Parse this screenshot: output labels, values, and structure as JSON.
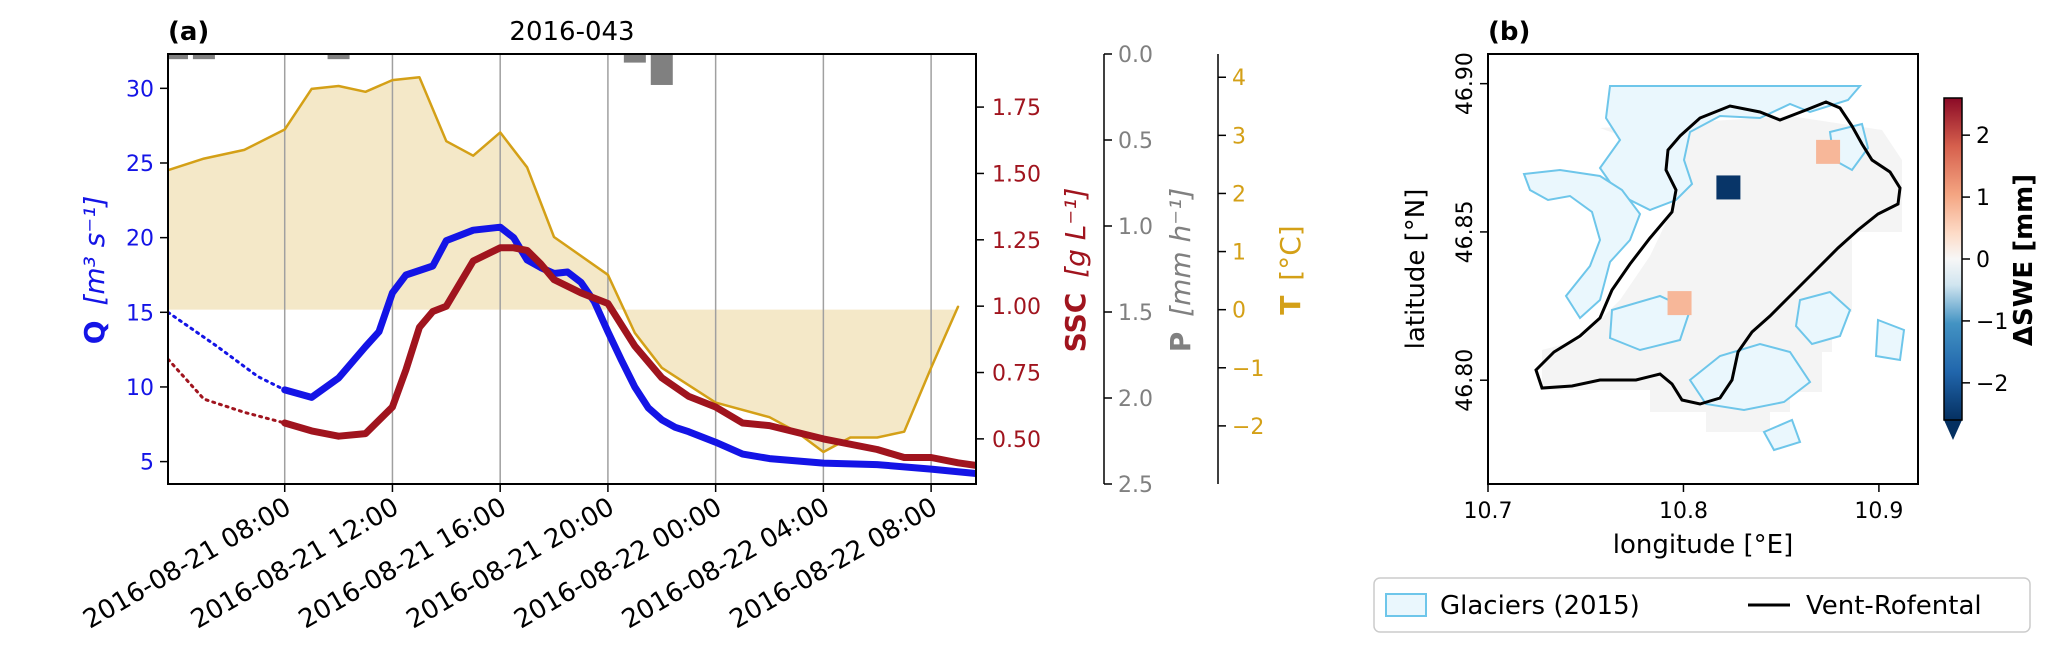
{
  "panel_a": {
    "tag": "(a)",
    "title": "2016-043",
    "x_ticks": [
      "2016-08-21 08:00",
      "2016-08-21 12:00",
      "2016-08-21 16:00",
      "2016-08-21 20:00",
      "2016-08-22 00:00",
      "2016-08-22 04:00",
      "2016-08-22 08:00"
    ],
    "q_axis": {
      "label_bold": "Q",
      "label_units": "[m³ s⁻¹]",
      "ticks": [
        "5",
        "10",
        "15",
        "20",
        "25",
        "30"
      ],
      "color": "#1414e6"
    },
    "ssc_axis": {
      "label_bold": "SSC",
      "label_units": "[g L⁻¹]",
      "ticks": [
        "0.50",
        "0.75",
        "1.00",
        "1.25",
        "1.50",
        "1.75"
      ],
      "color": "#a0141e"
    },
    "p_axis": {
      "label_bold": "P",
      "label_units": "[mm h⁻¹]",
      "ticks": [
        "0.0",
        "0.5",
        "1.0",
        "1.5",
        "2.0",
        "2.5"
      ],
      "color": "#808080"
    },
    "t_axis": {
      "label_bold": "T",
      "label_units": "[°C]",
      "ticks": [
        "4",
        "3",
        "2",
        "1",
        "0",
        "−1",
        "−2"
      ],
      "color": "#d4a017"
    }
  },
  "panel_b": {
    "tag": "(b)",
    "xlabel": "longitude [°E]",
    "ylabel": "latitude [°N]",
    "x_ticks": [
      "10.7",
      "10.8",
      "10.9"
    ],
    "y_ticks": [
      "46.80",
      "46.85",
      "46.90"
    ],
    "colorbar": {
      "label": "ΔSWE [mm]",
      "ticks": [
        "2",
        "1",
        "0",
        "−1",
        "−2"
      ]
    }
  },
  "legend": {
    "glaciers": "Glaciers (2015)",
    "catchment": "Vent-Rofental"
  },
  "chart_data": [
    {
      "type": "line",
      "title": "2016-043",
      "x_range": [
        "2016-08-21 03:40",
        "2016-08-22 09:40"
      ],
      "series": [
        {
          "name": "Q",
          "color": "#1414e6",
          "style": "solid",
          "x": [
            "2016-08-21 08:00",
            "2016-08-21 09:00",
            "2016-08-21 10:00",
            "2016-08-21 11:00",
            "2016-08-21 11:30",
            "2016-08-21 12:00",
            "2016-08-21 12:30",
            "2016-08-21 13:00",
            "2016-08-21 13:30",
            "2016-08-21 14:00",
            "2016-08-21 15:00",
            "2016-08-21 16:00",
            "2016-08-21 16:30",
            "2016-08-21 17:00",
            "2016-08-21 17:30",
            "2016-08-21 18:00",
            "2016-08-21 18:30",
            "2016-08-21 19:00",
            "2016-08-21 19:30",
            "2016-08-21 20:00",
            "2016-08-21 20:30",
            "2016-08-21 21:00",
            "2016-08-21 21:30",
            "2016-08-21 22:00",
            "2016-08-21 22:30",
            "2016-08-21 23:00",
            "2016-08-22 00:00",
            "2016-08-22 01:00",
            "2016-08-22 02:00",
            "2016-08-22 04:00",
            "2016-08-22 06:00",
            "2016-08-22 08:00",
            "2016-08-22 09:40"
          ],
          "values": [
            9.8,
            9.3,
            10.6,
            12.7,
            13.7,
            16.3,
            17.5,
            17.8,
            18.1,
            19.8,
            20.5,
            20.7,
            20.0,
            18.5,
            18.0,
            17.6,
            17.7,
            17.0,
            15.7,
            13.7,
            11.8,
            10.0,
            8.6,
            7.8,
            7.3,
            7.0,
            6.3,
            5.5,
            5.2,
            4.9,
            4.8,
            4.5,
            4.2
          ]
        },
        {
          "name": "Q (gap fill)",
          "color": "#1414e6",
          "style": "dotted",
          "x": [
            "2016-08-21 03:40",
            "2016-08-21 05:30",
            "2016-08-21 07:00",
            "2016-08-21 08:00"
          ],
          "values": [
            15.0,
            12.7,
            10.7,
            9.8
          ]
        },
        {
          "name": "SSC",
          "color": "#a0141e",
          "style": "solid",
          "x": [
            "2016-08-21 08:00",
            "2016-08-21 09:00",
            "2016-08-21 10:00",
            "2016-08-21 11:00",
            "2016-08-21 11:30",
            "2016-08-21 12:00",
            "2016-08-21 12:30",
            "2016-08-21 13:00",
            "2016-08-21 13:30",
            "2016-08-21 14:00",
            "2016-08-21 15:00",
            "2016-08-21 16:00",
            "2016-08-21 16:30",
            "2016-08-21 17:00",
            "2016-08-21 17:30",
            "2016-08-21 18:00",
            "2016-08-21 19:00",
            "2016-08-21 20:00",
            "2016-08-21 21:00",
            "2016-08-21 22:00",
            "2016-08-21 23:00",
            "2016-08-22 00:00",
            "2016-08-22 01:00",
            "2016-08-22 02:00",
            "2016-08-22 04:00",
            "2016-08-22 06:00",
            "2016-08-22 07:00",
            "2016-08-22 08:00",
            "2016-08-22 09:00",
            "2016-08-22 09:40"
          ],
          "values": [
            0.56,
            0.53,
            0.51,
            0.52,
            0.57,
            0.62,
            0.76,
            0.92,
            0.98,
            1.0,
            1.17,
            1.22,
            1.22,
            1.21,
            1.16,
            1.1,
            1.05,
            1.01,
            0.85,
            0.73,
            0.66,
            0.62,
            0.56,
            0.55,
            0.5,
            0.46,
            0.43,
            0.43,
            0.41,
            0.4
          ]
        },
        {
          "name": "SSC (gap fill)",
          "color": "#a0141e",
          "style": "dotted",
          "x": [
            "2016-08-21 03:40",
            "2016-08-21 05:00",
            "2016-08-21 06:30",
            "2016-08-21 08:00"
          ],
          "values": [
            0.8,
            0.65,
            0.6,
            0.56
          ]
        },
        {
          "name": "T",
          "color": "#d4a017",
          "style": "solid",
          "fill_to": 0,
          "x": [
            "2016-08-21 03:40",
            "2016-08-21 05:00",
            "2016-08-21 06:30",
            "2016-08-21 08:00",
            "2016-08-21 09:00",
            "2016-08-21 10:00",
            "2016-08-21 11:00",
            "2016-08-21 12:00",
            "2016-08-21 13:00",
            "2016-08-21 14:00",
            "2016-08-21 15:00",
            "2016-08-21 16:00",
            "2016-08-21 17:00",
            "2016-08-21 18:00",
            "2016-08-21 20:00",
            "2016-08-21 21:00",
            "2016-08-21 22:00",
            "2016-08-22 00:00",
            "2016-08-22 02:00",
            "2016-08-22 03:00",
            "2016-08-22 04:00",
            "2016-08-22 05:00",
            "2016-08-22 06:00",
            "2016-08-22 07:00",
            "2016-08-22 08:00",
            "2016-08-22 09:00"
          ],
          "values": [
            2.4,
            2.6,
            2.75,
            3.1,
            3.8,
            3.85,
            3.75,
            3.95,
            4.0,
            2.9,
            2.65,
            3.05,
            2.45,
            1.25,
            0.6,
            -0.4,
            -1.0,
            -1.6,
            -1.85,
            -2.1,
            -2.45,
            -2.2,
            -2.2,
            -2.1,
            -1.0,
            0.05
          ]
        },
        {
          "name": "P",
          "type": "bar",
          "color": "#808080",
          "x": [
            "2016-08-21 04:00",
            "2016-08-21 05:00",
            "2016-08-21 10:00",
            "2016-08-21 21:00",
            "2016-08-21 22:00"
          ],
          "values": [
            0.03,
            0.03,
            0.03,
            0.05,
            0.18
          ]
        }
      ],
      "axes": {
        "Q": {
          "label": "Q [m³ s⁻¹]",
          "ylim": [
            3.5,
            32.3
          ]
        },
        "SSC": {
          "label": "SSC [g L⁻¹]",
          "ylim": [
            0.33,
            1.95
          ]
        },
        "P": {
          "label": "P [mm h⁻¹]",
          "ylim": [
            2.5,
            0.0
          ],
          "inverted": true
        },
        "T": {
          "label": "T [°C]",
          "ylim": [
            -3.0,
            4.4
          ]
        }
      },
      "grid": "vertical at x ticks"
    },
    {
      "type": "heatmap",
      "title": "",
      "xlabel": "longitude [°E]",
      "ylabel": "latitude [°N]",
      "xlim": [
        10.7,
        10.92
      ],
      "ylim": [
        46.765,
        46.91
      ],
      "colorbar": {
        "label": "ΔSWE [mm]",
        "range": [
          -2.6,
          2.6
        ],
        "cmap": "RdBu_r"
      },
      "cells": [
        {
          "lon": 10.823,
          "lat": 46.865,
          "value": -2.5
        },
        {
          "lon": 10.874,
          "lat": 46.877,
          "value": 1.2
        },
        {
          "lon": 10.798,
          "lat": 46.826,
          "value": 1.2
        }
      ],
      "legend": {
        "entries": [
          "Glaciers (2015)",
          "Vent-Rofental"
        ],
        "placement": "below"
      }
    }
  ]
}
